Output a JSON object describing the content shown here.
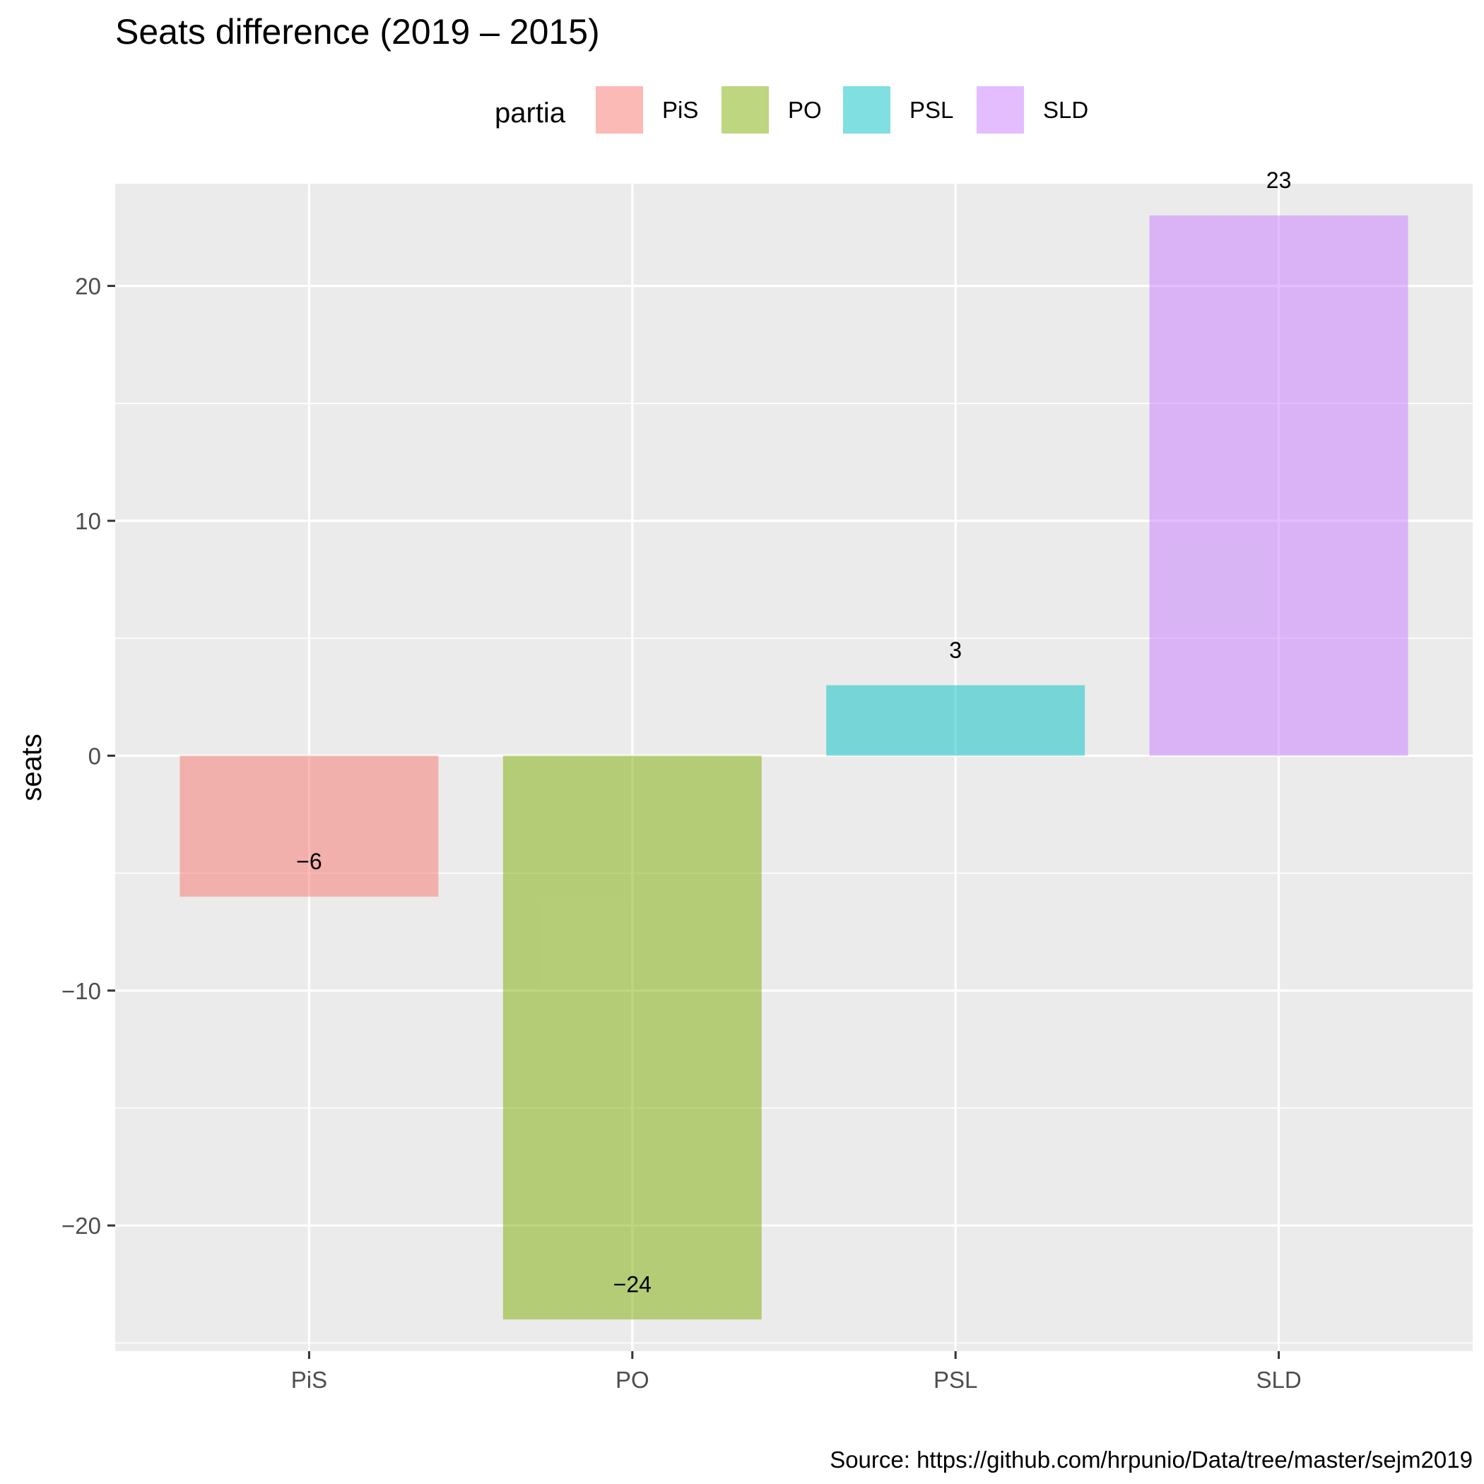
{
  "chart_data": {
    "type": "bar",
    "title": "Seats difference (2019 – 2015)",
    "xlabel": "",
    "ylabel": "seats",
    "categories": [
      "PiS",
      "PO",
      "PSL",
      "SLD"
    ],
    "values": [
      -6,
      -24,
      3,
      23
    ],
    "value_labels": [
      "−6",
      "−24",
      "3",
      "23"
    ],
    "ylim": [
      -25.35,
      24.35
    ],
    "yticks": [
      -20,
      -10,
      0,
      10,
      20
    ],
    "ytick_labels": [
      "−20",
      "−10",
      "0",
      "10",
      "20"
    ],
    "grid": true,
    "legend": {
      "title": "partia",
      "position": "top",
      "entries": [
        "PiS",
        "PO",
        "PSL",
        "SLD"
      ]
    },
    "colors": [
      "#F8766D",
      "#7CAE00",
      "#00BFC4",
      "#C77CFF"
    ],
    "bar_opacity": 0.5,
    "panel_background": "#EBEBEB",
    "caption": "Source: https://github.com/hrpunio/Data/tree/master/sejm2019"
  }
}
